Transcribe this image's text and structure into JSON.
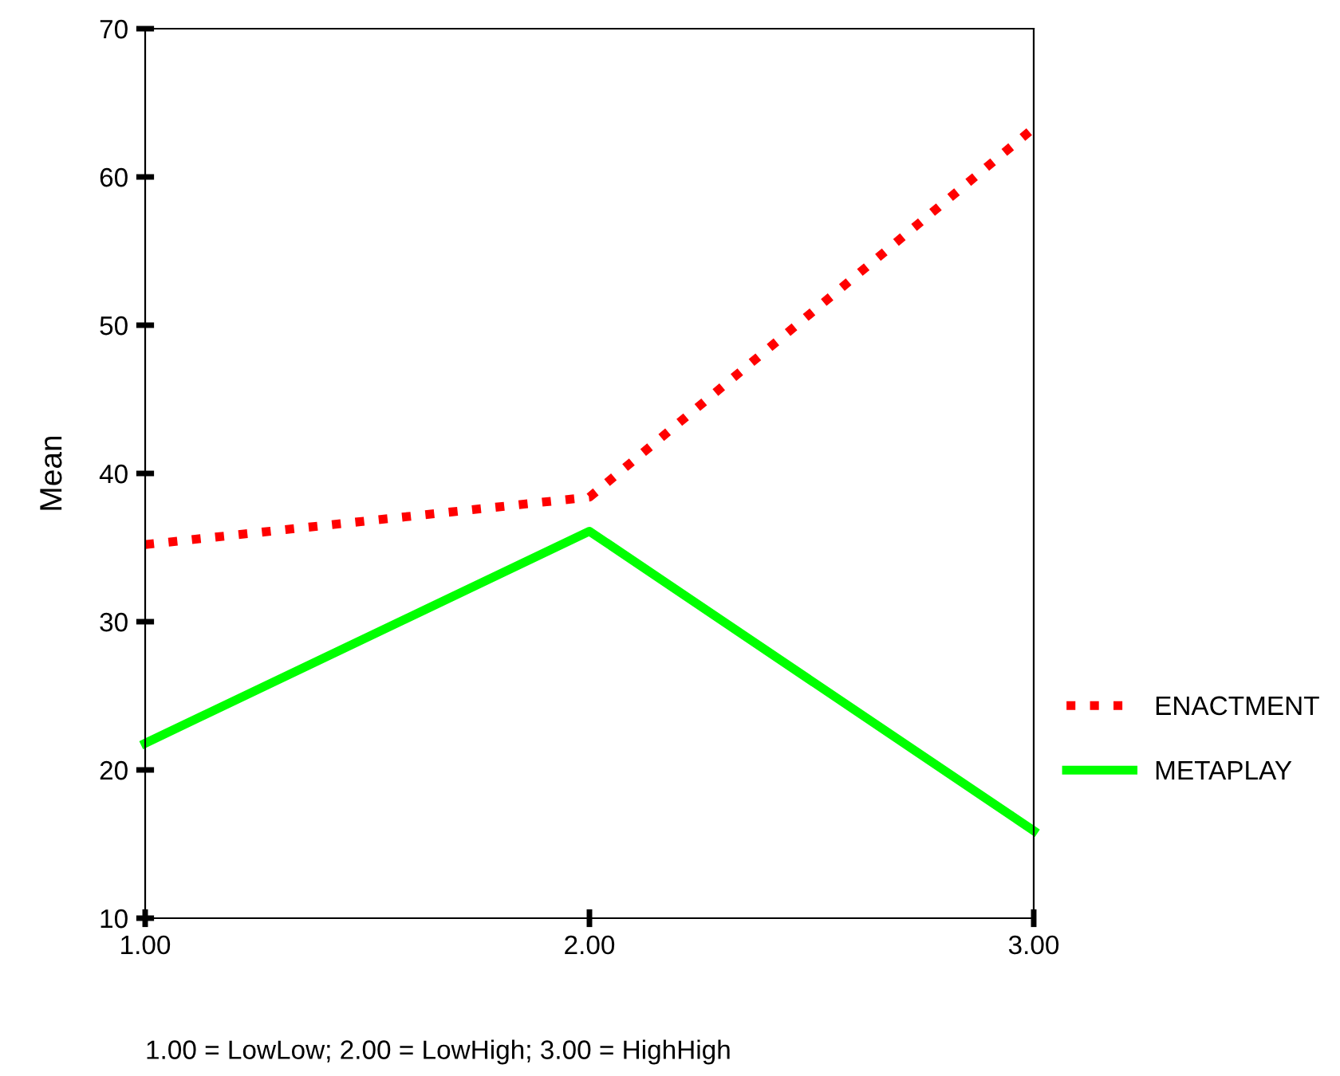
{
  "chart_data": {
    "type": "line",
    "ylabel": "Mean",
    "x": [
      1,
      2,
      3
    ],
    "series": [
      {
        "name": "ENACTMENT",
        "color": "#ff0000",
        "values": [
          35.2,
          38.4,
          63.3
        ],
        "line_style": "dotted"
      },
      {
        "name": "METAPLAY",
        "color": "#00ff00",
        "values": [
          21.8,
          36.1,
          15.9
        ],
        "line_style": "solid"
      }
    ],
    "xlim": [
      1,
      3
    ],
    "xticks": [
      {
        "value": 1,
        "label": "1.00"
      },
      {
        "value": 2,
        "label": "2.00"
      },
      {
        "value": 3,
        "label": "3.00"
      }
    ],
    "ylim": [
      10,
      70
    ],
    "yticks": [
      10,
      20,
      30,
      40,
      50,
      60,
      70
    ],
    "grid": false,
    "legend": "right",
    "marker": "none",
    "annotations": [
      "1.00 = LowLow; 2.00 = LowHigh; 3.00 = HighHigh"
    ]
  }
}
